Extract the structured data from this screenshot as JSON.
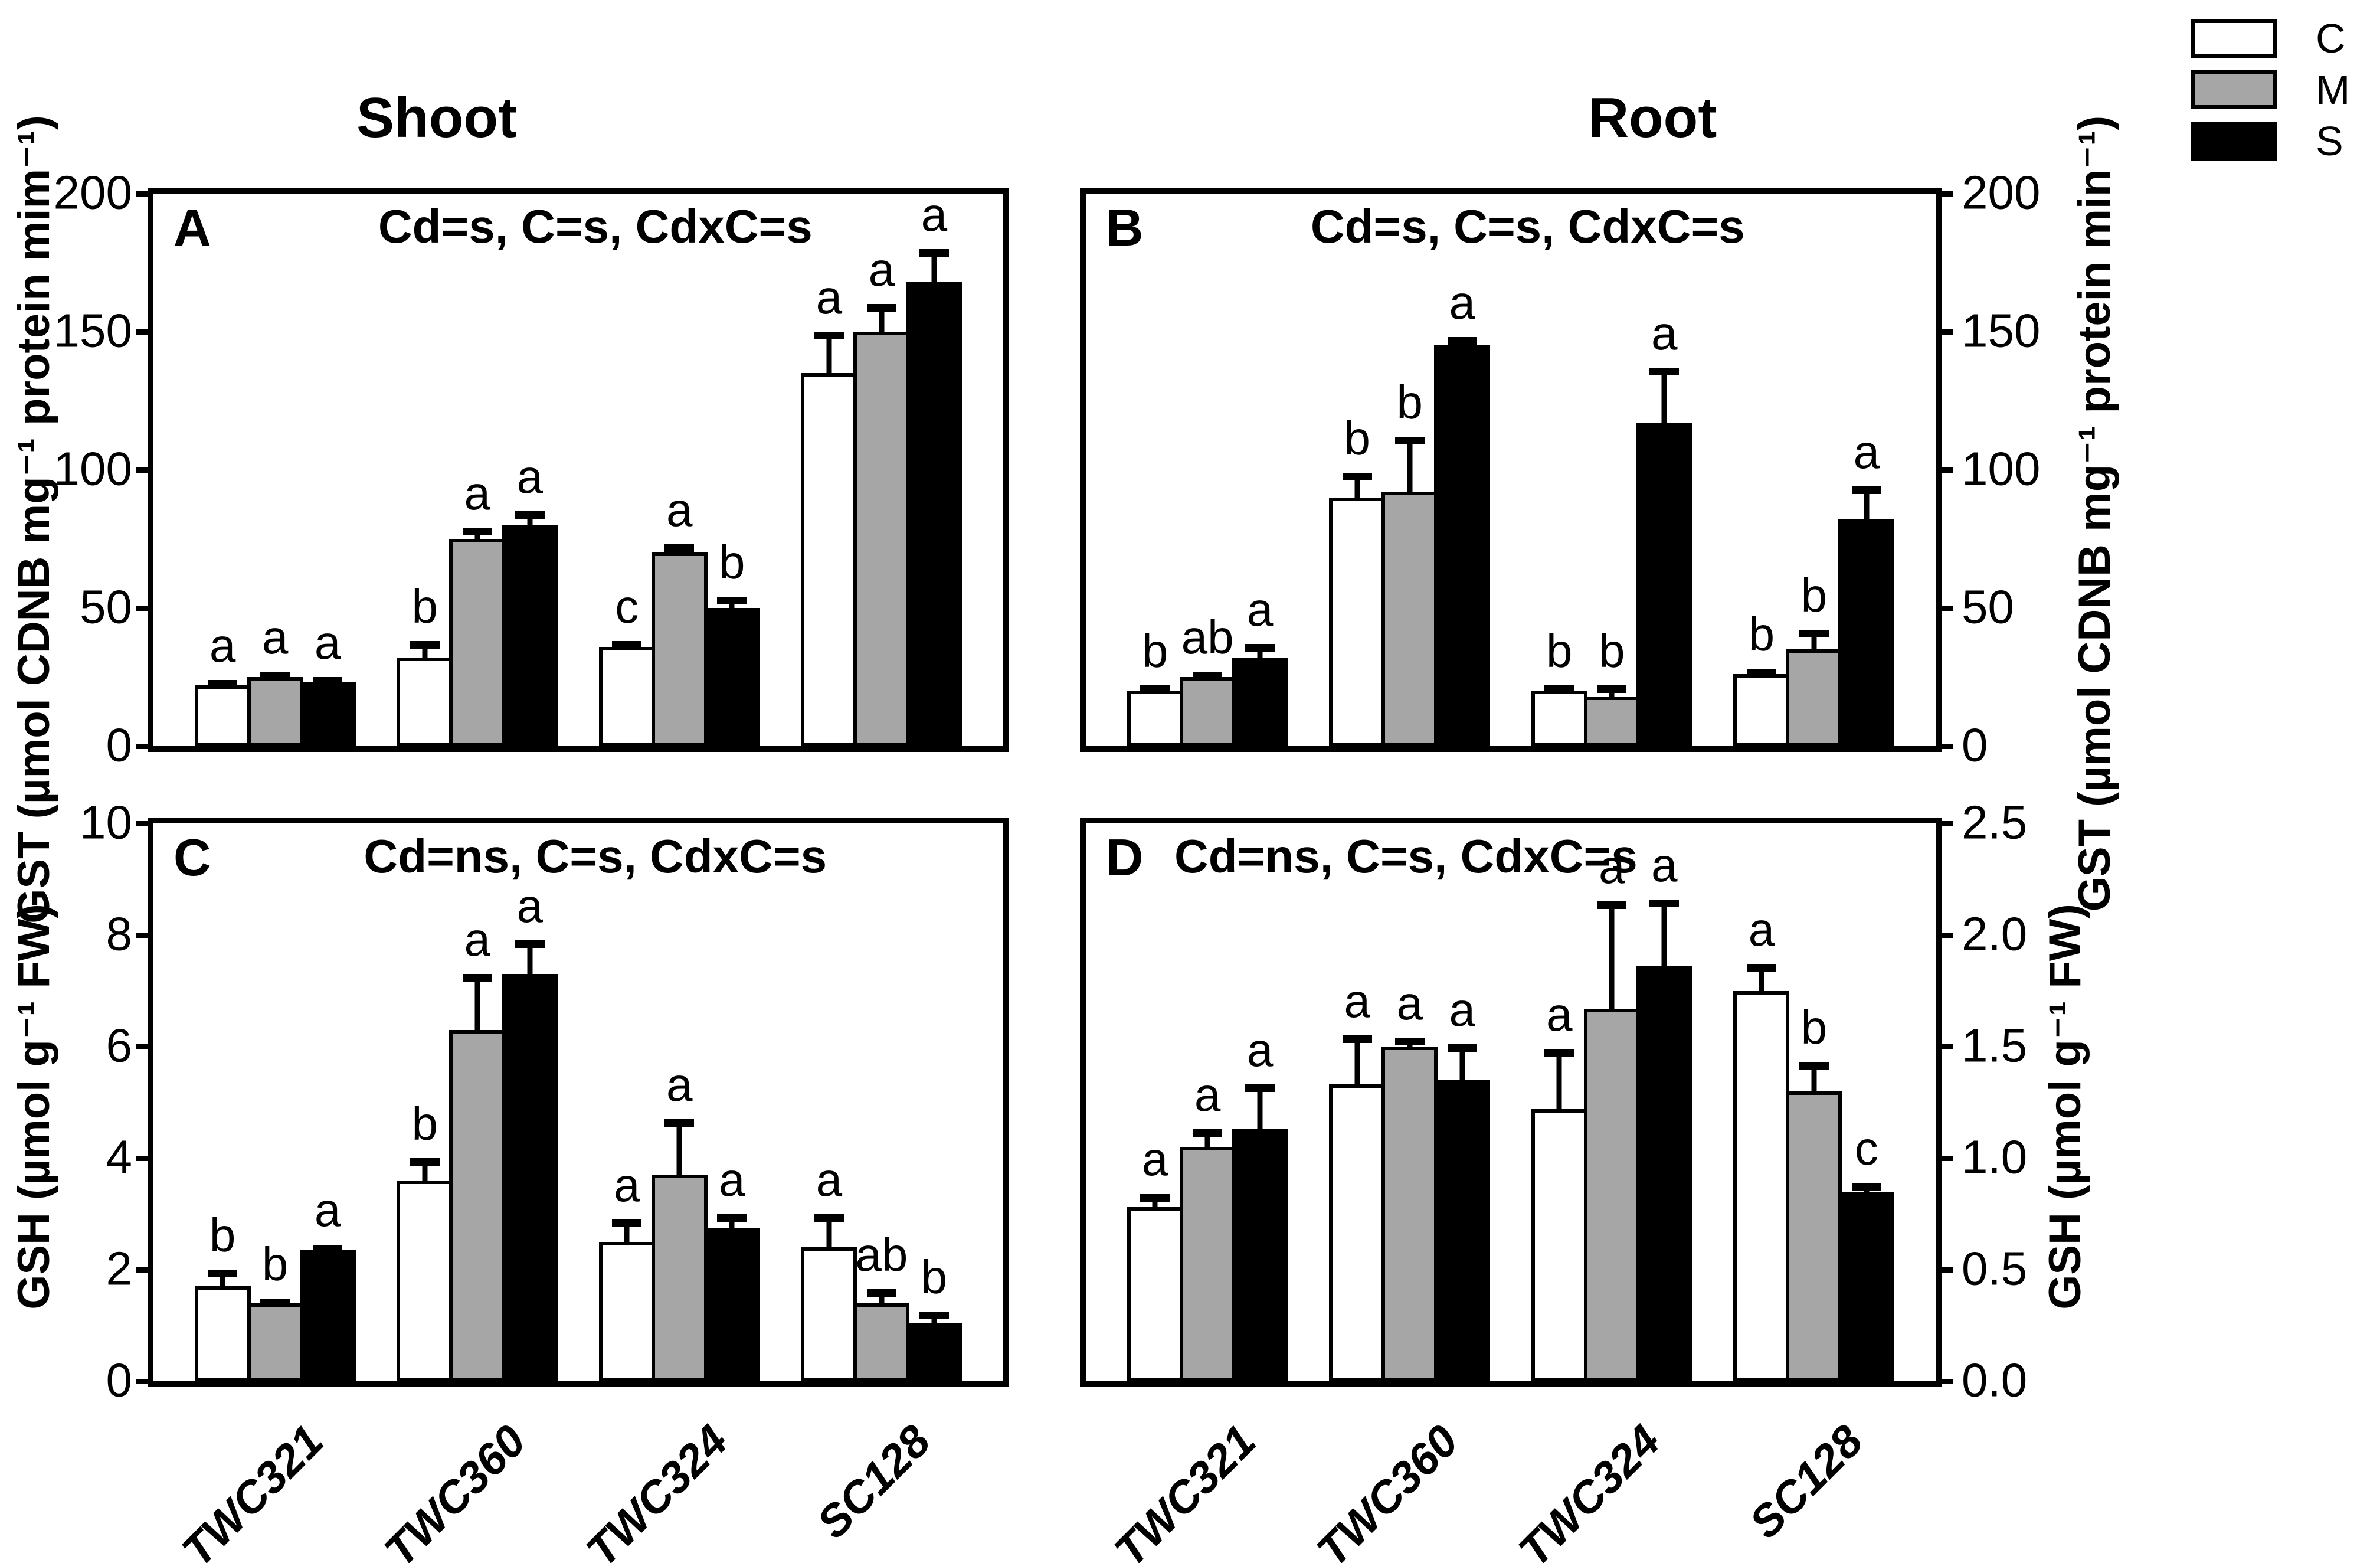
{
  "figure": {
    "background": "#ffffff",
    "column_titles": {
      "left": "Shoot",
      "right": "Root"
    },
    "legend": {
      "items": [
        {
          "label": "C",
          "color": "#ffffff"
        },
        {
          "label": "M",
          "color": "#a6a6a6"
        },
        {
          "label": "S",
          "color": "#000000"
        }
      ]
    }
  },
  "chart_data": [
    {
      "id": "A",
      "type": "bar",
      "panel_letter": "A",
      "title": "Cd=s, C=s, CdxC=s",
      "column": "Shoot",
      "ylabel": "GST (µmol CDNB mg⁻¹ protein mim⁻¹)",
      "yaxis_side": "left",
      "ylim": [
        0,
        200
      ],
      "yticks": [
        0,
        50,
        100,
        150,
        200
      ],
      "ytick_labels": [
        "0",
        "50",
        "100",
        "150",
        "200"
      ],
      "categories": [
        "TWC321",
        "TWC360",
        "TWC324",
        "SC128"
      ],
      "show_xticklabels": false,
      "grid": false,
      "series": [
        {
          "name": "C",
          "color": "#ffffff",
          "values": [
            22,
            32,
            36,
            135
          ],
          "errors": [
            2,
            6,
            2,
            15
          ],
          "letters": [
            "a",
            "b",
            "c",
            "a"
          ]
        },
        {
          "name": "M",
          "color": "#a6a6a6",
          "values": [
            25,
            75,
            70,
            150
          ],
          "errors": [
            2,
            4,
            3,
            10
          ],
          "letters": [
            "a",
            "a",
            "a",
            "a"
          ]
        },
        {
          "name": "S",
          "color": "#000000",
          "values": [
            23,
            80,
            50,
            168
          ],
          "errors": [
            2,
            5,
            4,
            12
          ],
          "letters": [
            "a",
            "a",
            "b",
            "a"
          ]
        }
      ]
    },
    {
      "id": "B",
      "type": "bar",
      "panel_letter": "B",
      "title": "Cd=s, C=s, CdxC=s",
      "column": "Root",
      "ylabel": "GST (µmol CDNB mg⁻¹ protein min⁻¹)",
      "yaxis_side": "right",
      "ylim": [
        0,
        200
      ],
      "yticks": [
        0,
        50,
        100,
        150,
        200
      ],
      "ytick_labels": [
        "0",
        "50",
        "100",
        "150",
        "200"
      ],
      "categories": [
        "TWC321",
        "TWC360",
        "TWC324",
        "SC128"
      ],
      "show_xticklabels": false,
      "grid": false,
      "series": [
        {
          "name": "C",
          "color": "#ffffff",
          "values": [
            20,
            90,
            20,
            26
          ],
          "errors": [
            2,
            9,
            2,
            2
          ],
          "letters": [
            "b",
            "b",
            "b",
            "b"
          ]
        },
        {
          "name": "M",
          "color": "#a6a6a6",
          "values": [
            25,
            92,
            18,
            35
          ],
          "errors": [
            2,
            20,
            4,
            7
          ],
          "letters": [
            "ab",
            "b",
            "b",
            "b"
          ]
        },
        {
          "name": "S",
          "color": "#000000",
          "values": [
            32,
            145,
            117,
            82
          ],
          "errors": [
            5,
            3,
            20,
            12
          ],
          "letters": [
            "a",
            "a",
            "a",
            "a"
          ]
        }
      ]
    },
    {
      "id": "C",
      "type": "bar",
      "panel_letter": "C",
      "title": "Cd=ns, C=s, CdxC=s",
      "column": "Shoot",
      "ylabel": "GSH (µmol g⁻¹ FW)",
      "yaxis_side": "left",
      "ylim": [
        0,
        10
      ],
      "yticks": [
        0,
        2,
        4,
        6,
        8,
        10
      ],
      "ytick_labels": [
        "0",
        "2",
        "4",
        "6",
        "8",
        "10"
      ],
      "categories": [
        "TWC321",
        "TWC360",
        "TWC324",
        "SC128"
      ],
      "show_xticklabels": true,
      "grid": false,
      "series": [
        {
          "name": "C",
          "color": "#ffffff",
          "values": [
            1.7,
            3.6,
            2.5,
            2.4
          ],
          "errors": [
            0.3,
            0.4,
            0.4,
            0.6
          ],
          "letters": [
            "b",
            "b",
            "a",
            "a"
          ]
        },
        {
          "name": "M",
          "color": "#a6a6a6",
          "values": [
            1.4,
            6.3,
            3.7,
            1.4
          ],
          "errors": [
            0.08,
            1.0,
            1.0,
            0.25
          ],
          "letters": [
            "b",
            "a",
            "a",
            "ab"
          ]
        },
        {
          "name": "S",
          "color": "#000000",
          "values": [
            2.35,
            7.3,
            2.75,
            1.05
          ],
          "errors": [
            0.1,
            0.6,
            0.25,
            0.2
          ],
          "letters": [
            "a",
            "a",
            "a",
            "b"
          ]
        }
      ]
    },
    {
      "id": "D",
      "type": "bar",
      "panel_letter": "D",
      "title": "Cd=ns, C=s, CdxC=s",
      "column": "Root",
      "ylabel": "GSH (µmol g⁻¹ FW)",
      "yaxis_side": "right",
      "ylim": [
        0,
        2.5
      ],
      "yticks": [
        0,
        0.5,
        1.0,
        1.5,
        2.0,
        2.5
      ],
      "ytick_labels": [
        "0.0",
        "0.5",
        "1.0",
        "1.5",
        "2.0",
        "2.5"
      ],
      "categories": [
        "TWC321",
        "TWC360",
        "TWC324",
        "SC128"
      ],
      "show_xticklabels": true,
      "grid": false,
      "series": [
        {
          "name": "C",
          "color": "#ffffff",
          "values": [
            0.78,
            1.33,
            1.22,
            1.75
          ],
          "errors": [
            0.06,
            0.22,
            0.27,
            0.12
          ],
          "letters": [
            "a",
            "a",
            "a",
            "a"
          ]
        },
        {
          "name": "M",
          "color": "#a6a6a6",
          "values": [
            1.05,
            1.5,
            1.67,
            1.3
          ],
          "errors": [
            0.08,
            0.04,
            0.48,
            0.13
          ],
          "letters": [
            "a",
            "a",
            "a",
            "b"
          ]
        },
        {
          "name": "S",
          "color": "#000000",
          "values": [
            1.13,
            1.35,
            1.86,
            0.85
          ],
          "errors": [
            0.2,
            0.16,
            0.3,
            0.04
          ],
          "letters": [
            "a",
            "a",
            "a",
            "c"
          ]
        }
      ]
    }
  ]
}
